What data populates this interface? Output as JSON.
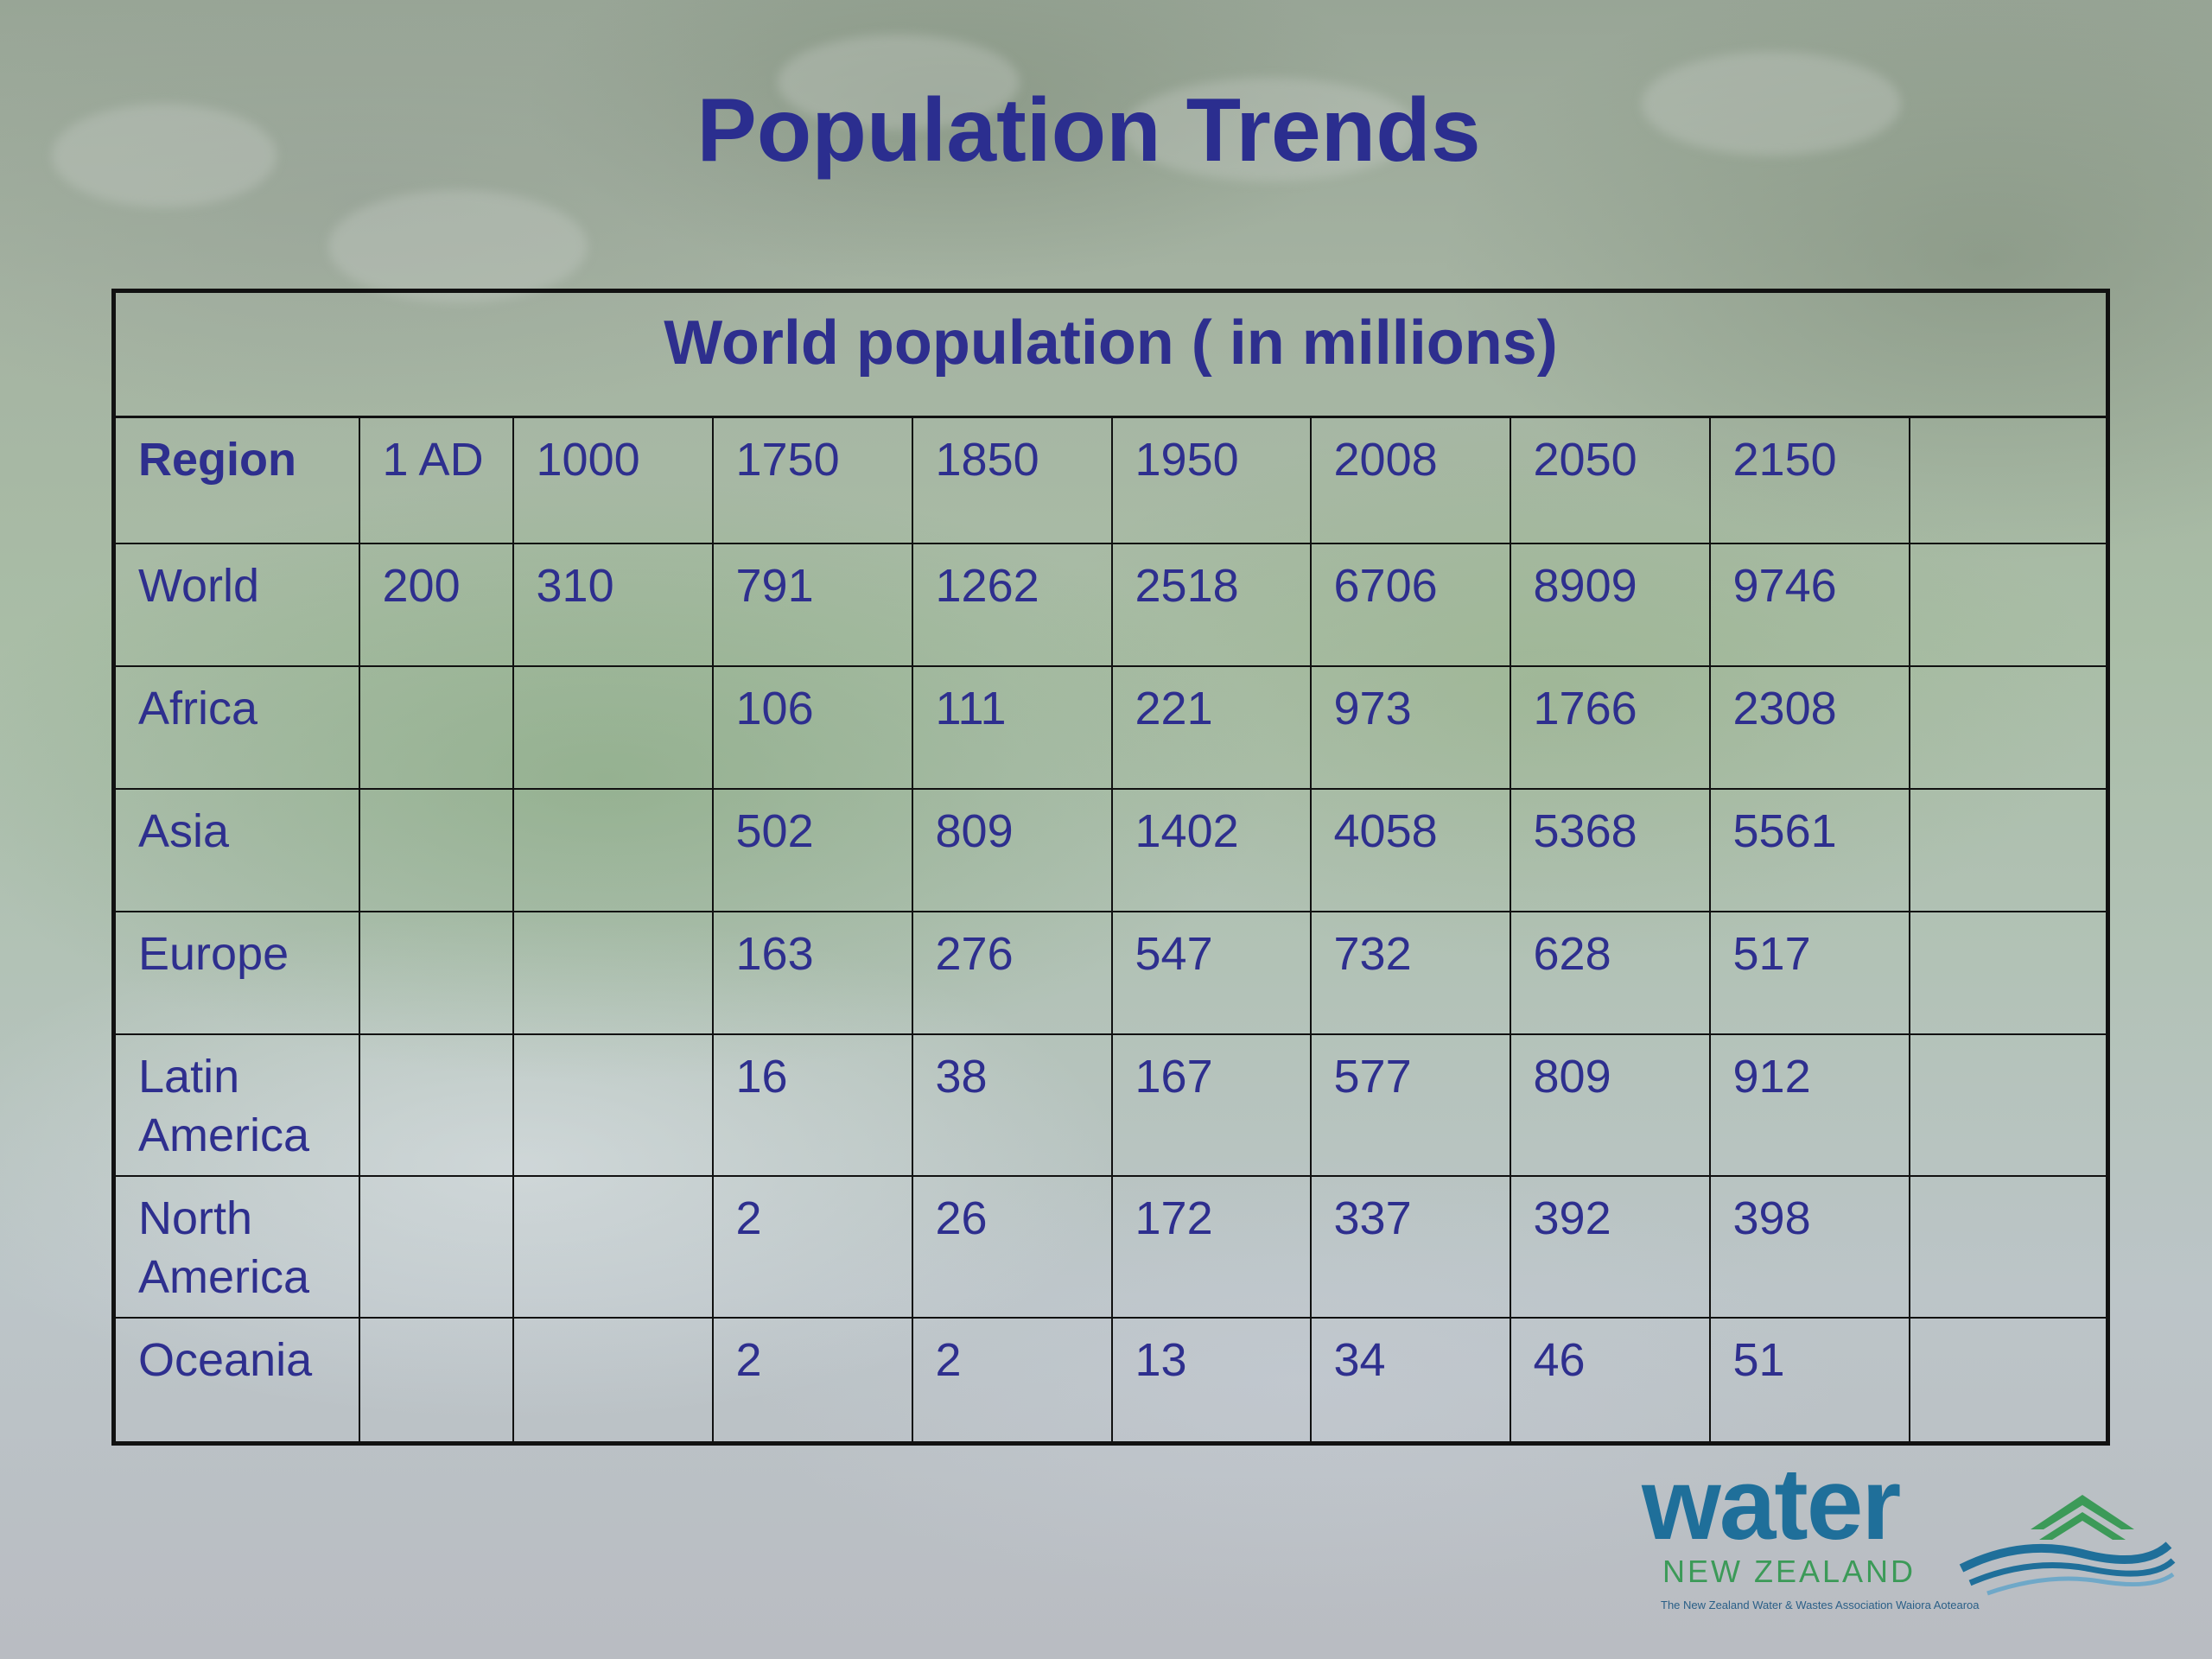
{
  "slide": {
    "title": "Population Trends"
  },
  "table": {
    "caption": "World population ( in millions)",
    "headers": [
      "Region",
      "1 AD",
      "1000",
      "1750",
      "1850",
      "1950",
      "2008",
      "2050",
      "2150",
      ""
    ],
    "rows": [
      [
        "World",
        "200",
        "310",
        "791",
        "1262",
        "2518",
        "6706",
        "8909",
        "9746",
        ""
      ],
      [
        "Africa",
        "",
        "",
        "106",
        "111",
        "221",
        "973",
        "1766",
        "2308",
        ""
      ],
      [
        "Asia",
        "",
        "",
        "502",
        "809",
        "1402",
        "4058",
        "5368",
        "5561",
        ""
      ],
      [
        "Europe",
        "",
        "",
        "163",
        "276",
        "547",
        "732",
        "628",
        "517",
        ""
      ],
      [
        "Latin America",
        "",
        "",
        "16",
        "38",
        "167",
        "577",
        "809",
        "912",
        ""
      ],
      [
        "North America",
        "",
        "",
        "2",
        "26",
        "172",
        "337",
        "392",
        "398",
        ""
      ],
      [
        "Oceania",
        "",
        "",
        "2",
        "2",
        "13",
        "34",
        "46",
        "51",
        ""
      ]
    ]
  },
  "logo": {
    "word": "water",
    "sub": "NEW ZEALAND",
    "tagline": "The New Zealand Water & Wastes Association Waiora Aotearoa",
    "colors": {
      "primary": "#1f6f9a",
      "secondary": "#3c9a58"
    }
  },
  "colors": {
    "text": "#2e2f8e",
    "title": "#2b2e8f",
    "grid": "#111111"
  }
}
